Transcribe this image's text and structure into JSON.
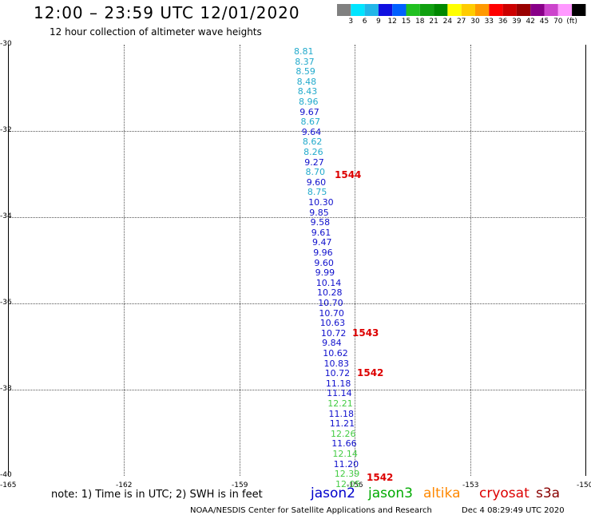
{
  "header": {
    "title": "12:00 – 23:59 UTC 12/01/2020",
    "subtitle": "12 hour collection of altimeter wave heights"
  },
  "colorbar": {
    "colors": [
      "#808080",
      "#00e5ff",
      "#22b6e8",
      "#1010e0",
      "#0060ff",
      "#20c020",
      "#10a010",
      "#008800",
      "#ffff00",
      "#ffcc00",
      "#ff9900",
      "#ff0000",
      "#cc0000",
      "#990000",
      "#880088",
      "#cc44cc",
      "#ff99ff",
      "#000000"
    ],
    "labels": [
      "3",
      "6",
      "9",
      "12",
      "15",
      "18",
      "21",
      "24",
      "27",
      "30",
      "33",
      "36",
      "39",
      "42",
      "45",
      "70",
      "(ft)"
    ]
  },
  "axes": {
    "y_ticks": [
      "-30",
      "-32",
      "-34",
      "-36",
      "-38",
      "-40"
    ],
    "x_ticks": [
      "-165",
      "-162",
      "-159",
      "-156",
      "-153",
      "-150"
    ]
  },
  "observations": [
    {
      "label": "8.81",
      "color": "#22aacc"
    },
    {
      "label": "8.37",
      "color": "#22aacc"
    },
    {
      "label": "8.59",
      "color": "#22aacc"
    },
    {
      "label": "8.48",
      "color": "#22aacc"
    },
    {
      "label": "8.43",
      "color": "#22aacc"
    },
    {
      "label": "8.96",
      "color": "#22aacc"
    },
    {
      "label": "9.67",
      "color": "#1010cc"
    },
    {
      "label": "8.67",
      "color": "#22aacc"
    },
    {
      "label": "9.64",
      "color": "#1010cc"
    },
    {
      "label": "8.62",
      "color": "#22aacc"
    },
    {
      "label": "8.26",
      "color": "#22aacc"
    },
    {
      "label": "9.27",
      "color": "#1010cc"
    },
    {
      "label": "8.70",
      "color": "#22aacc"
    },
    {
      "label": "9.60",
      "color": "#1010cc"
    },
    {
      "label": "8.75",
      "color": "#22aacc"
    },
    {
      "label": "10.30",
      "color": "#1010cc"
    },
    {
      "label": "9.85",
      "color": "#1010cc"
    },
    {
      "label": "9.58",
      "color": "#1010cc"
    },
    {
      "label": "9.61",
      "color": "#1010cc"
    },
    {
      "label": "9.47",
      "color": "#1010cc"
    },
    {
      "label": "9.96",
      "color": "#1010cc"
    },
    {
      "label": "9.60",
      "color": "#1010cc"
    },
    {
      "label": "9.99",
      "color": "#1010cc"
    },
    {
      "label": "10.14",
      "color": "#1010cc"
    },
    {
      "label": "10.28",
      "color": "#1010cc"
    },
    {
      "label": "10.70",
      "color": "#1010cc"
    },
    {
      "label": "10.70",
      "color": "#1010cc"
    },
    {
      "label": "10.63",
      "color": "#1010cc"
    },
    {
      "label": "10.72",
      "color": "#1010cc"
    },
    {
      "label": "9.84",
      "color": "#1010cc"
    },
    {
      "label": "10.62",
      "color": "#1010cc"
    },
    {
      "label": "10.83",
      "color": "#1010cc"
    },
    {
      "label": "10.72",
      "color": "#1010cc"
    },
    {
      "label": "11.18",
      "color": "#1010cc"
    },
    {
      "label": "11.14",
      "color": "#1010cc"
    },
    {
      "label": "12.21",
      "color": "#44cc44"
    },
    {
      "label": "11.18",
      "color": "#1010cc"
    },
    {
      "label": "11.21",
      "color": "#1010cc"
    },
    {
      "label": "12.26",
      "color": "#44cc44"
    },
    {
      "label": "11.66",
      "color": "#1010cc"
    },
    {
      "label": "12.14",
      "color": "#44cc44"
    },
    {
      "label": "11.20",
      "color": "#1010cc"
    },
    {
      "label": "12.39",
      "color": "#44cc44"
    },
    {
      "label": "12.05",
      "color": "#44cc44"
    }
  ],
  "pass_times": [
    {
      "label": "1544"
    },
    {
      "label": "1543"
    },
    {
      "label": "1542"
    },
    {
      "label": "1542"
    }
  ],
  "note": "note:  1) Time is in UTC; 2) SWH is in feet",
  "legend": [
    {
      "label": "jason2",
      "color": "#0000cc"
    },
    {
      "label": "jason3",
      "color": "#00aa00"
    },
    {
      "label": "altika",
      "color": "#ff8800"
    },
    {
      "label": "cryosat",
      "color": "#dd0000"
    },
    {
      "label": "s3a",
      "color": "#880000"
    }
  ],
  "footer": {
    "left": "NOAA/NESDIS Center for Satellite Applications and Research",
    "right": "Dec  4 08:29:49 UTC 2020"
  }
}
